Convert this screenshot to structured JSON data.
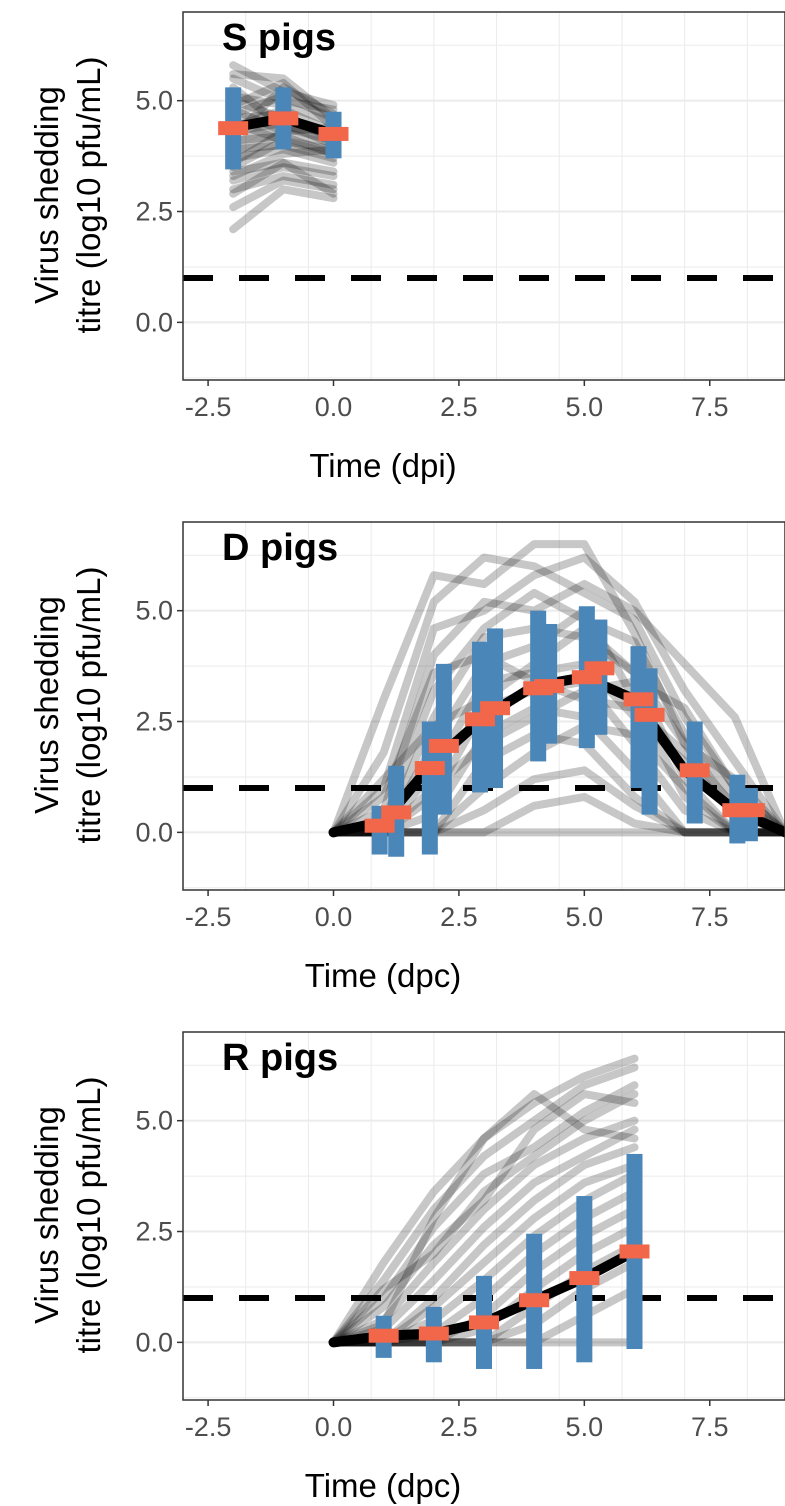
{
  "figure": {
    "ylabel_line1": "Virus shedding",
    "ylabel_line2": "titre (log10 pfu/mL)"
  },
  "colors": {
    "individual_lines": "#000000",
    "interval_bars": "#4a86b8",
    "median_marks": "#f2664a",
    "threshold": "#000000",
    "grid": "#ebebeb",
    "panel_border": "#333333",
    "tick_labels": "#4d4d4d"
  },
  "chart_data": [
    {
      "type": "line",
      "title": "S pigs",
      "xlabel": "Time (dpi)",
      "ylabel": "Virus shedding titre (log10 pfu/mL)",
      "xlim": [
        -3.0,
        9.0
      ],
      "ylim": [
        -1.3,
        7.0
      ],
      "x_ticks": [
        -2.5,
        0.0,
        2.5,
        5.0,
        7.5
      ],
      "x_tick_labels": [
        "-2.5",
        "0.0",
        "2.5",
        "5.0",
        "7.5"
      ],
      "y_ticks": [
        0.0,
        2.5,
        5.0
      ],
      "y_tick_labels": [
        "0.0",
        "2.5",
        "5.0"
      ],
      "grid": true,
      "threshold": 1.0,
      "mean_line": {
        "x": [
          -2,
          -1,
          0
        ],
        "y": [
          4.4,
          4.6,
          4.25
        ]
      },
      "intervals": [
        {
          "x": -2,
          "low": 3.45,
          "high": 5.3
        },
        {
          "x": -1,
          "low": 3.9,
          "high": 5.3
        },
        {
          "x": 0,
          "low": 3.7,
          "high": 4.75
        }
      ],
      "medians": [
        {
          "x": -2,
          "y": 4.38
        },
        {
          "x": -1,
          "y": 4.6
        },
        {
          "x": 0,
          "y": 4.25
        }
      ],
      "individuals_x": [
        -2,
        -1,
        0
      ],
      "individuals": [
        [
          5.8,
          5.2,
          4.9
        ],
        [
          5.6,
          5.5,
          4.6
        ],
        [
          5.5,
          5.0,
          4.8
        ],
        [
          5.3,
          4.4,
          4.3
        ],
        [
          5.1,
          4.9,
          4.5
        ],
        [
          5.0,
          4.6,
          4.2
        ],
        [
          4.9,
          5.4,
          4.4
        ],
        [
          4.8,
          4.3,
          4.0
        ],
        [
          4.7,
          5.1,
          4.6
        ],
        [
          4.6,
          4.7,
          4.1
        ],
        [
          4.5,
          4.1,
          3.9
        ],
        [
          4.4,
          4.8,
          4.3
        ],
        [
          4.3,
          4.5,
          4.0
        ],
        [
          4.2,
          5.3,
          4.7
        ],
        [
          4.1,
          4.2,
          3.8
        ],
        [
          4.0,
          4.6,
          4.2
        ],
        [
          3.9,
          4.0,
          3.7
        ],
        [
          3.8,
          4.4,
          4.1
        ],
        [
          3.7,
          3.9,
          3.6
        ],
        [
          3.6,
          4.3,
          4.4
        ],
        [
          3.5,
          4.1,
          3.8
        ],
        [
          3.4,
          3.6,
          3.4
        ],
        [
          3.3,
          3.8,
          3.9
        ],
        [
          3.2,
          3.5,
          3.3
        ],
        [
          3.0,
          3.3,
          3.1
        ],
        [
          2.9,
          3.6,
          2.9
        ],
        [
          2.6,
          3.2,
          3.0
        ],
        [
          2.1,
          3.0,
          2.8
        ]
      ]
    },
    {
      "type": "line",
      "title": "D pigs",
      "xlabel": "Time (dpc)",
      "ylabel": "Virus shedding titre (log10 pfu/mL)",
      "xlim": [
        -3.0,
        9.0
      ],
      "ylim": [
        -1.3,
        7.0
      ],
      "x_ticks": [
        -2.5,
        0.0,
        2.5,
        5.0,
        7.5
      ],
      "x_tick_labels": [
        "-2.5",
        "0.0",
        "2.5",
        "5.0",
        "7.5"
      ],
      "y_ticks": [
        0.0,
        2.5,
        5.0
      ],
      "y_tick_labels": [
        "0.0",
        "2.5",
        "5.0"
      ],
      "grid": true,
      "threshold": 1.0,
      "mean_line": {
        "x": [
          0,
          1,
          2,
          3,
          4,
          5,
          6,
          7,
          8,
          9
        ],
        "y": [
          0.0,
          0.25,
          1.6,
          2.6,
          3.3,
          3.5,
          3.0,
          1.4,
          0.5,
          0.0
        ]
      },
      "intervals": [
        {
          "x": 0.92,
          "low": -0.5,
          "high": 0.6
        },
        {
          "x": 1.25,
          "low": -0.55,
          "high": 1.5
        },
        {
          "x": 1.92,
          "low": -0.5,
          "high": 2.5
        },
        {
          "x": 2.2,
          "low": 0.4,
          "high": 3.8
        },
        {
          "x": 2.92,
          "low": 0.9,
          "high": 4.3
        },
        {
          "x": 3.22,
          "low": 1.0,
          "high": 4.6
        },
        {
          "x": 4.08,
          "low": 1.6,
          "high": 5.0
        },
        {
          "x": 4.3,
          "low": 2.0,
          "high": 4.7
        },
        {
          "x": 5.05,
          "low": 1.9,
          "high": 5.1
        },
        {
          "x": 5.3,
          "low": 2.2,
          "high": 4.8
        },
        {
          "x": 6.08,
          "low": 1.0,
          "high": 4.2
        },
        {
          "x": 6.3,
          "low": 0.4,
          "high": 3.7
        },
        {
          "x": 7.2,
          "low": 0.2,
          "high": 2.5
        },
        {
          "x": 8.05,
          "low": -0.25,
          "high": 1.3
        },
        {
          "x": 8.3,
          "low": -0.2,
          "high": 1.0
        }
      ],
      "medians": [
        {
          "x": 0.92,
          "y": 0.15
        },
        {
          "x": 1.25,
          "y": 0.45
        },
        {
          "x": 1.92,
          "y": 1.45
        },
        {
          "x": 2.2,
          "y": 1.95
        },
        {
          "x": 2.92,
          "y": 2.55
        },
        {
          "x": 3.22,
          "y": 2.8
        },
        {
          "x": 4.08,
          "y": 3.25
        },
        {
          "x": 4.3,
          "y": 3.3
        },
        {
          "x": 5.05,
          "y": 3.5
        },
        {
          "x": 5.3,
          "y": 3.7
        },
        {
          "x": 6.08,
          "y": 3.0
        },
        {
          "x": 6.3,
          "y": 2.65
        },
        {
          "x": 7.2,
          "y": 1.4
        },
        {
          "x": 8.05,
          "y": 0.5
        },
        {
          "x": 8.3,
          "y": 0.5
        }
      ],
      "individuals_x": [
        0,
        1,
        2,
        3,
        4,
        5,
        6,
        7,
        8,
        9
      ],
      "individuals": [
        [
          0,
          3.0,
          5.8,
          5.6,
          6.5,
          6.5,
          4.5,
          2.0,
          0.5,
          0
        ],
        [
          0,
          1.8,
          5.2,
          6.2,
          6.0,
          5.4,
          4.8,
          2.6,
          1.0,
          0
        ],
        [
          0,
          1.0,
          4.6,
          5.0,
          5.8,
          6.2,
          5.2,
          3.2,
          1.6,
          0
        ],
        [
          0,
          0.5,
          4.0,
          5.2,
          5.0,
          5.6,
          5.0,
          3.8,
          2.6,
          0
        ],
        [
          0,
          0.2,
          3.2,
          4.6,
          5.4,
          4.8,
          4.3,
          2.2,
          0.8,
          0
        ],
        [
          0,
          0,
          2.6,
          4.4,
          4.6,
          4.4,
          3.6,
          1.2,
          0,
          0
        ],
        [
          0,
          0,
          2.0,
          3.8,
          4.2,
          5.0,
          3.0,
          0.8,
          0,
          0
        ],
        [
          0,
          0,
          1.4,
          3.4,
          3.6,
          3.8,
          2.6,
          1.6,
          0.4,
          0
        ],
        [
          0,
          0,
          0.8,
          2.8,
          3.2,
          3.4,
          2.0,
          0.5,
          0,
          0
        ],
        [
          0,
          0,
          0.4,
          2.2,
          2.8,
          2.6,
          1.4,
          0,
          0,
          0
        ],
        [
          0,
          0,
          0,
          1.6,
          2.2,
          2.0,
          0.8,
          0,
          0,
          0
        ],
        [
          0,
          0,
          0,
          1.0,
          1.8,
          2.4,
          2.2,
          1.0,
          0,
          0
        ],
        [
          0,
          0,
          0,
          0.5,
          1.2,
          1.4,
          0.6,
          0,
          0,
          0
        ],
        [
          0,
          0,
          0,
          0,
          0.6,
          0.8,
          0.2,
          0,
          0,
          0
        ],
        [
          0,
          0.8,
          3.6,
          4.0,
          3.4,
          3.0,
          2.8,
          1.8,
          0.6,
          0
        ],
        [
          0,
          1.2,
          2.4,
          3.0,
          3.8,
          4.6,
          3.6,
          2.0,
          1.2,
          0
        ],
        [
          0,
          0,
          1.0,
          2.0,
          2.6,
          3.2,
          3.4,
          2.8,
          1.0,
          0
        ],
        [
          0,
          0,
          0,
          0,
          0,
          0,
          0,
          0,
          0,
          0
        ]
      ]
    },
    {
      "type": "line",
      "title": "R pigs",
      "xlabel": "Time (dpc)",
      "ylabel": "Virus shedding titre (log10 pfu/mL)",
      "xlim": [
        -3.0,
        9.0
      ],
      "ylim": [
        -1.3,
        7.0
      ],
      "x_ticks": [
        -2.5,
        0.0,
        2.5,
        5.0,
        7.5
      ],
      "x_tick_labels": [
        "-2.5",
        "0.0",
        "2.5",
        "5.0",
        "7.5"
      ],
      "y_ticks": [
        0.0,
        2.5,
        5.0
      ],
      "y_tick_labels": [
        "0.0",
        "2.5",
        "5.0"
      ],
      "grid": true,
      "threshold": 1.0,
      "mean_line": {
        "x": [
          0,
          1,
          2,
          3,
          4,
          5,
          6
        ],
        "y": [
          0.0,
          0.15,
          0.2,
          0.45,
          0.95,
          1.45,
          2.05
        ]
      },
      "intervals": [
        {
          "x": 1,
          "low": -0.35,
          "high": 0.6
        },
        {
          "x": 2,
          "low": -0.45,
          "high": 0.8
        },
        {
          "x": 3,
          "low": -0.6,
          "high": 1.5
        },
        {
          "x": 4,
          "low": -0.6,
          "high": 2.45
        },
        {
          "x": 5,
          "low": -0.45,
          "high": 3.3
        },
        {
          "x": 6,
          "low": -0.15,
          "high": 4.25
        }
      ],
      "medians": [
        {
          "x": 1,
          "y": 0.15
        },
        {
          "x": 2,
          "y": 0.2
        },
        {
          "x": 3,
          "y": 0.45
        },
        {
          "x": 4,
          "y": 0.95
        },
        {
          "x": 5,
          "y": 1.45
        },
        {
          "x": 6,
          "y": 2.05
        }
      ],
      "individuals_x": [
        0,
        1,
        2,
        3,
        4,
        5,
        6
      ],
      "individuals": [
        [
          0,
          1.8,
          3.4,
          4.6,
          5.4,
          6.0,
          6.4
        ],
        [
          0,
          1.4,
          3.0,
          4.2,
          5.0,
          5.8,
          6.2
        ],
        [
          0,
          1.0,
          2.6,
          3.8,
          4.4,
          5.2,
          5.8
        ],
        [
          0,
          0.8,
          2.2,
          3.2,
          4.8,
          5.6,
          5.4
        ],
        [
          0,
          0.5,
          1.8,
          3.0,
          4.0,
          4.6,
          5.0
        ],
        [
          0,
          0.3,
          1.4,
          2.6,
          3.6,
          4.2,
          4.8
        ],
        [
          0,
          0,
          1.0,
          2.2,
          3.2,
          4.0,
          4.4
        ],
        [
          0,
          0,
          0.8,
          1.8,
          2.8,
          3.6,
          4.0
        ],
        [
          0,
          0,
          0.5,
          1.4,
          2.4,
          3.2,
          3.8
        ],
        [
          0,
          0,
          0.2,
          1.0,
          2.0,
          2.8,
          3.4
        ],
        [
          0,
          0,
          0,
          0.6,
          1.6,
          2.4,
          3.0
        ],
        [
          0,
          0,
          0,
          0.3,
          1.2,
          2.0,
          2.6
        ],
        [
          0,
          0,
          0,
          0,
          0.8,
          1.6,
          2.2
        ],
        [
          0,
          0,
          0,
          0,
          0.4,
          1.2,
          1.8
        ],
        [
          0,
          0,
          0,
          0,
          0,
          0.6,
          1.2
        ],
        [
          0,
          0.4,
          2.8,
          4.6,
          5.6,
          4.8,
          4.6
        ],
        [
          0,
          1.2,
          2.0,
          3.4,
          4.2,
          5.0,
          5.6
        ],
        [
          0,
          0,
          0,
          0,
          0,
          0,
          0
        ]
      ]
    }
  ]
}
